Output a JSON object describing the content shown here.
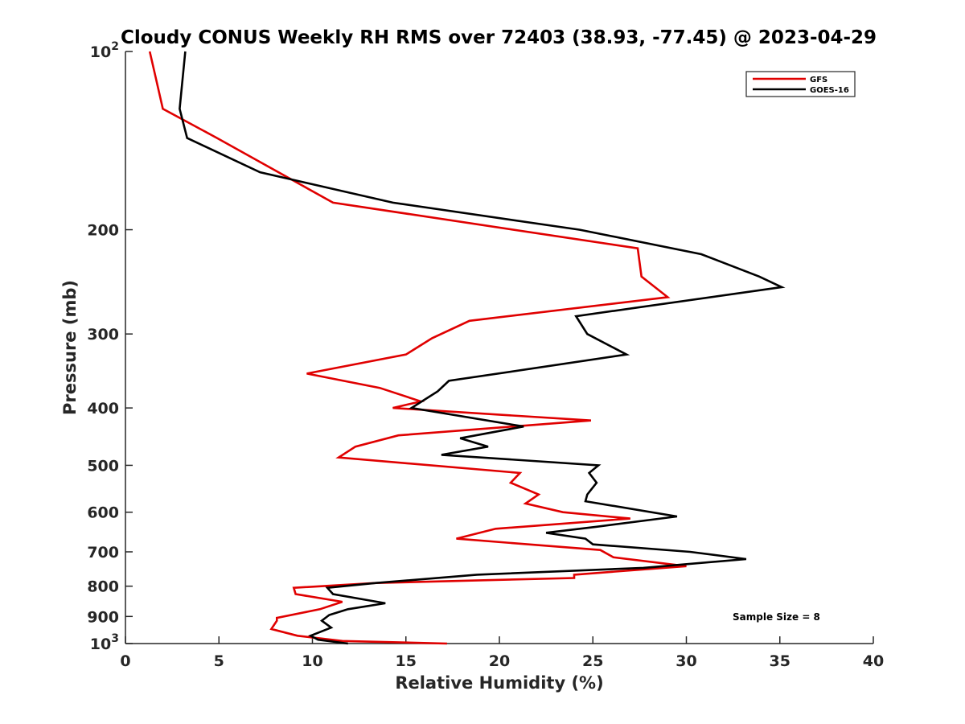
{
  "chart_data": {
    "type": "line",
    "title": "Cloudy CONUS Weekly RH RMS over 72403 (38.93, -77.45) @ 2023-04-29",
    "xlabel": "Relative Humidity (%)",
    "ylabel": "Pressure (mb)",
    "xlim": [
      0,
      40
    ],
    "ylim": [
      100,
      1000
    ],
    "y_scale": "log",
    "y_reversed": true,
    "grid": false,
    "legend_position": "top-right",
    "x_ticks": [
      0,
      5,
      10,
      15,
      20,
      25,
      30,
      35,
      40
    ],
    "x_tick_labels": [
      "0",
      "5",
      "10",
      "15",
      "20",
      "25",
      "30",
      "35",
      "40"
    ],
    "y_ticks": [
      100,
      200,
      300,
      400,
      500,
      600,
      700,
      800,
      900,
      1000
    ],
    "y_tick_labels": [
      {
        "base": "10",
        "exp": "2"
      },
      {
        "base": "200",
        "exp": ""
      },
      {
        "base": "300",
        "exp": ""
      },
      {
        "base": "400",
        "exp": ""
      },
      {
        "base": "500",
        "exp": ""
      },
      {
        "base": "600",
        "exp": ""
      },
      {
        "base": "700",
        "exp": ""
      },
      {
        "base": "800",
        "exp": ""
      },
      {
        "base": "900",
        "exp": ""
      },
      {
        "base": "10",
        "exp": "3"
      }
    ],
    "annotation": "Sample Size = 8",
    "series": [
      {
        "name": "GFS",
        "color": "#e00000",
        "points": [
          [
            1.3,
            100
          ],
          [
            1.6,
            110
          ],
          [
            2.0,
            125
          ],
          [
            4.9,
            140
          ],
          [
            11.1,
            180
          ],
          [
            27.4,
            215
          ],
          [
            27.6,
            240
          ],
          [
            29.0,
            260
          ],
          [
            18.4,
            285
          ],
          [
            16.4,
            305
          ],
          [
            15.0,
            325
          ],
          [
            9.7,
            350
          ],
          [
            13.6,
            370
          ],
          [
            15.8,
            390
          ],
          [
            14.3,
            400
          ],
          [
            24.9,
            420
          ],
          [
            14.6,
            445
          ],
          [
            12.3,
            465
          ],
          [
            11.4,
            485
          ],
          [
            21.1,
            515
          ],
          [
            20.6,
            535
          ],
          [
            22.1,
            560
          ],
          [
            21.4,
            580
          ],
          [
            23.4,
            600
          ],
          [
            27.0,
            615
          ],
          [
            19.8,
            640
          ],
          [
            17.7,
            665
          ],
          [
            25.4,
            695
          ],
          [
            26.1,
            715
          ],
          [
            30.0,
            740
          ],
          [
            24.0,
            765
          ],
          [
            24.0,
            775
          ],
          [
            13.4,
            790
          ],
          [
            9.0,
            805
          ],
          [
            9.1,
            825
          ],
          [
            11.6,
            850
          ],
          [
            10.4,
            875
          ],
          [
            8.1,
            905
          ],
          [
            8.1,
            915
          ],
          [
            7.8,
            945
          ],
          [
            9.2,
            970
          ],
          [
            11.6,
            990
          ],
          [
            17.2,
            1000
          ]
        ]
      },
      {
        "name": "GOES-16",
        "color": "#000000",
        "points": [
          [
            3.2,
            100
          ],
          [
            2.9,
            125
          ],
          [
            3.3,
            140
          ],
          [
            7.2,
            160
          ],
          [
            14.3,
            180
          ],
          [
            24.3,
            200
          ],
          [
            30.8,
            220
          ],
          [
            33.9,
            240
          ],
          [
            35.1,
            250
          ],
          [
            24.1,
            280
          ],
          [
            24.7,
            300
          ],
          [
            26.8,
            325
          ],
          [
            17.3,
            360
          ],
          [
            16.7,
            375
          ],
          [
            15.3,
            400
          ],
          [
            21.3,
            430
          ],
          [
            17.9,
            450
          ],
          [
            19.4,
            465
          ],
          [
            16.9,
            480
          ],
          [
            25.3,
            500
          ],
          [
            24.8,
            515
          ],
          [
            25.2,
            535
          ],
          [
            24.7,
            560
          ],
          [
            24.6,
            575
          ],
          [
            29.5,
            610
          ],
          [
            25.2,
            635
          ],
          [
            22.5,
            650
          ],
          [
            24.6,
            665
          ],
          [
            25.0,
            680
          ],
          [
            30.2,
            700
          ],
          [
            33.2,
            720
          ],
          [
            27.7,
            745
          ],
          [
            18.8,
            765
          ],
          [
            13.4,
            790
          ],
          [
            10.8,
            805
          ],
          [
            11.1,
            825
          ],
          [
            13.9,
            855
          ],
          [
            11.9,
            875
          ],
          [
            10.9,
            895
          ],
          [
            10.5,
            915
          ],
          [
            11.0,
            940
          ],
          [
            9.9,
            970
          ],
          [
            10.3,
            985
          ],
          [
            11.9,
            1000
          ]
        ]
      }
    ]
  }
}
